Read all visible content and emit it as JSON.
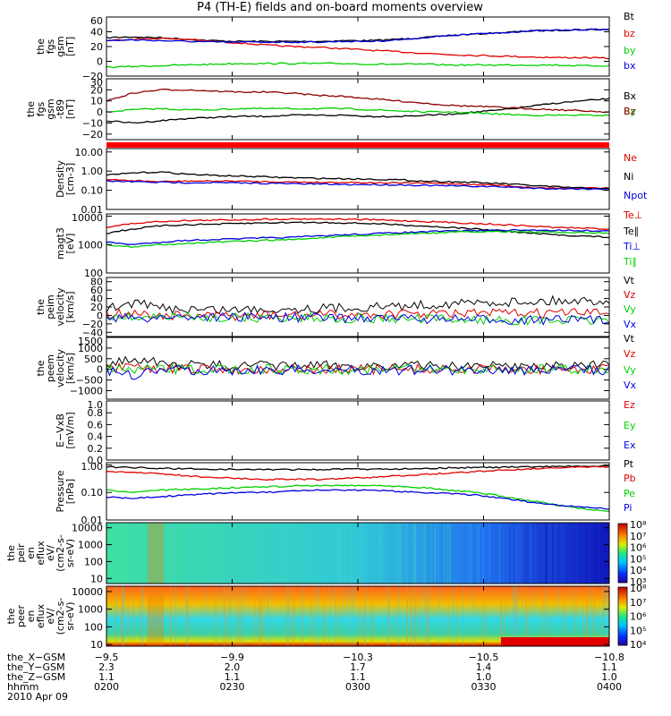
{
  "title": "P4 (TH-E) fields and on-board moments overview",
  "colors": {
    "black": "#000000",
    "red": "#e00000",
    "green": "#00d000",
    "blue": "#0000e0"
  },
  "chart_data": [
    {
      "type": "line",
      "panel": "fgs_gsm",
      "ylabel": [
        "the",
        "fgs",
        "gsm",
        "[nT]"
      ],
      "ylim": [
        -20,
        60
      ],
      "yticks": [
        "60",
        "40",
        "20",
        "0",
        "−20"
      ],
      "series": [
        {
          "name": "Bt",
          "color": "#000000",
          "values": [
            32,
            33,
            32,
            30,
            28,
            27,
            27,
            27,
            27,
            28,
            28,
            30,
            32,
            35,
            37,
            39,
            41,
            42,
            43,
            43
          ]
        },
        {
          "name": "bz",
          "color": "#e00000",
          "values": [
            28,
            30,
            31,
            30,
            27,
            25,
            22,
            20,
            19,
            17,
            15,
            13,
            11,
            9,
            8,
            7,
            6,
            5,
            5,
            4
          ]
        },
        {
          "name": "by",
          "color": "#00d000",
          "values": [
            -8,
            -7,
            -6,
            -5,
            -4,
            -3,
            -3,
            -3,
            -3,
            -3,
            -4,
            -4,
            -4,
            -5,
            -5,
            -5,
            -5,
            -5,
            -6,
            -6
          ]
        },
        {
          "name": "bx",
          "color": "#0000e0",
          "values": [
            28,
            29,
            28,
            27,
            26,
            26,
            26,
            26,
            26,
            27,
            27,
            29,
            32,
            35,
            37,
            39,
            41,
            42,
            43,
            43
          ]
        }
      ]
    },
    {
      "type": "line",
      "panel": "fgs_gsm_t89",
      "ylabel": [
        "the",
        "fgs",
        "gsm",
        "-t89",
        "[nT]"
      ],
      "ylim": [
        -25,
        30
      ],
      "yticks": [
        "30",
        "20",
        "10",
        "0",
        "−10",
        "−20"
      ],
      "series": [
        {
          "name": "Bx",
          "color": "#000000",
          "values": [
            -8,
            -10,
            -8,
            -6,
            -5,
            -4,
            -4,
            -3,
            -3,
            -3,
            -4,
            -4,
            -3,
            -2,
            0,
            2,
            5,
            8,
            10,
            12
          ]
        },
        {
          "name": "By",
          "color": "#00d000",
          "values": [
            0,
            2,
            3,
            2,
            2,
            3,
            3,
            3,
            3,
            3,
            2,
            1,
            0,
            0,
            -1,
            -2,
            -3,
            -3,
            -3,
            -3
          ]
        },
        {
          "name": "Bz",
          "color": "#8b0000",
          "values": [
            10,
            17,
            20,
            20,
            19,
            18,
            18,
            17,
            15,
            14,
            12,
            10,
            8,
            6,
            5,
            4,
            3,
            2,
            1,
            0
          ]
        }
      ]
    },
    {
      "type": "line",
      "panel": "density",
      "log": true,
      "ylabel": [
        "Density",
        "[cm-3]"
      ],
      "ylim": [
        0.01,
        15
      ],
      "yticks": [
        "10.00",
        "1.00",
        "0.10",
        "0.01"
      ],
      "series": [
        {
          "name": "Ne",
          "color": "#e00000",
          "values": [
            0.35,
            0.32,
            0.28,
            0.3,
            0.3,
            0.3,
            0.28,
            0.27,
            0.26,
            0.26,
            0.25,
            0.24,
            0.24,
            0.22,
            0.2,
            0.18,
            0.14,
            0.13,
            0.13,
            0.13
          ]
        },
        {
          "name": "Ni",
          "color": "#000000",
          "values": [
            0.6,
            0.8,
            0.9,
            0.7,
            0.6,
            0.55,
            0.5,
            0.45,
            0.42,
            0.4,
            0.38,
            0.35,
            0.3,
            0.28,
            0.25,
            0.22,
            0.18,
            0.15,
            0.13,
            0.12
          ]
        },
        {
          "name": "Npot",
          "color": "#0000e0",
          "values": [
            0.3,
            0.28,
            0.26,
            0.25,
            0.25,
            0.24,
            0.23,
            0.22,
            0.21,
            0.2,
            0.2,
            0.19,
            0.18,
            0.17,
            0.16,
            0.15,
            0.13,
            0.12,
            0.12,
            0.11
          ]
        }
      ]
    },
    {
      "type": "line",
      "panel": "temperature",
      "log": true,
      "ylabel": [
        "magt3",
        "[eV]"
      ],
      "ylim": [
        100,
        12000
      ],
      "yticks": [
        "10000",
        "1000",
        "100"
      ],
      "series": [
        {
          "name": "Te⊥",
          "color": "#e00000",
          "values": [
            4000,
            5500,
            6500,
            7000,
            7200,
            7500,
            7800,
            8000,
            8000,
            7800,
            7500,
            7000,
            6500,
            6000,
            5500,
            5000,
            4500,
            4000,
            3800,
            3500
          ]
        },
        {
          "name": "Te∥",
          "color": "#000000",
          "values": [
            2500,
            3500,
            4500,
            5000,
            5200,
            5500,
            5800,
            6000,
            6000,
            5800,
            5500,
            5000,
            4500,
            4000,
            3500,
            3000,
            2500,
            2200,
            2000,
            1800
          ]
        },
        {
          "name": "Ti⊥",
          "color": "#0000e0",
          "values": [
            1200,
            1000,
            1200,
            1400,
            1500,
            1600,
            1700,
            1800,
            2000,
            2200,
            2400,
            2600,
            2800,
            3000,
            3100,
            3200,
            3200,
            3200,
            3100,
            3000
          ]
        },
        {
          "name": "Ti∥",
          "color": "#00d000",
          "values": [
            1000,
            800,
            1000,
            1100,
            1200,
            1300,
            1400,
            1500,
            1700,
            1900,
            2100,
            2300,
            2500,
            2700,
            2800,
            2900,
            2800,
            2700,
            2600,
            2500
          ]
        }
      ]
    },
    {
      "type": "line",
      "panel": "peim_velocity",
      "ylabel": [
        "the",
        "peim",
        "velocity",
        "[km/s]"
      ],
      "ylim": [
        -50,
        90
      ],
      "yticks": [
        "80",
        "60",
        "40",
        "20",
        "0",
        "−20",
        "−40"
      ],
      "series": [
        {
          "name": "Vt",
          "color": "#000000",
          "values": [
            15,
            30,
            18,
            15,
            14,
            14,
            15,
            16,
            17,
            18,
            20,
            22,
            25,
            28,
            30,
            32,
            33,
            35,
            35,
            36
          ]
        },
        {
          "name": "Vz",
          "color": "#e00000",
          "values": [
            2,
            5,
            0,
            -2,
            -2,
            -1,
            0,
            0,
            1,
            2,
            2,
            3,
            3,
            4,
            5,
            5,
            5,
            6,
            6,
            6
          ]
        },
        {
          "name": "Vy",
          "color": "#00d000",
          "values": [
            0,
            -5,
            -3,
            -4,
            -5,
            -5,
            -6,
            -6,
            -6,
            -7,
            -7,
            -8,
            -9,
            -10,
            -10,
            -11,
            -12,
            -12,
            -12,
            -12
          ]
        },
        {
          "name": "Vx",
          "color": "#0000e0",
          "values": [
            -3,
            -8,
            -4,
            -3,
            -3,
            -4,
            -4,
            -5,
            -5,
            -6,
            -6,
            -7,
            -8,
            -9,
            -10,
            -10,
            -11,
            -11,
            -11,
            -11
          ]
        }
      ]
    },
    {
      "type": "line",
      "panel": "peem_velocity",
      "ylabel": [
        "the",
        "peem",
        "velocity",
        "[km/s]"
      ],
      "ylim": [
        -1400,
        1500
      ],
      "yticks": [
        "1500",
        "1000",
        "500",
        "0",
        "−500",
        "−1000"
      ],
      "series": [
        {
          "name": "Vt",
          "color": "#000000",
          "values": [
            200,
            600,
            250,
            200,
            180,
            170,
            170,
            170,
            170,
            170,
            170,
            170,
            170,
            170,
            170,
            170,
            170,
            170,
            170,
            200
          ]
        },
        {
          "name": "Vz",
          "color": "#e00000",
          "values": [
            20,
            60,
            10,
            0,
            0,
            0,
            0,
            0,
            0,
            0,
            0,
            0,
            0,
            0,
            0,
            0,
            0,
            0,
            0,
            0
          ]
        },
        {
          "name": "Vy",
          "color": "#00d000",
          "values": [
            0,
            -50,
            0,
            0,
            0,
            0,
            0,
            0,
            0,
            0,
            0,
            0,
            0,
            0,
            0,
            0,
            0,
            0,
            0,
            0
          ]
        },
        {
          "name": "Vx",
          "color": "#0000e0",
          "values": [
            -20,
            -300,
            -40,
            -30,
            -30,
            -30,
            -30,
            -30,
            -30,
            -30,
            -30,
            -30,
            -30,
            -30,
            -30,
            -30,
            -30,
            -30,
            -30,
            -30
          ]
        }
      ]
    },
    {
      "type": "line",
      "panel": "e_vxb",
      "ylabel": [
        "E−VxB",
        "[mV/m]"
      ],
      "ylim": [
        0,
        1
      ],
      "yticks": [
        "1.0",
        "0.8",
        "0.6",
        "0.4",
        "0.2",
        "0.0"
      ],
      "series": [
        {
          "name": "Ez",
          "color": "#e00000",
          "values": []
        },
        {
          "name": "Ey",
          "color": "#00d000",
          "values": []
        },
        {
          "name": "Ex",
          "color": "#0000e0",
          "values": []
        }
      ]
    },
    {
      "type": "line",
      "panel": "pressure",
      "log": true,
      "ylabel": [
        "Pressure",
        "[nPa]"
      ],
      "ylim": [
        0.01,
        1.2
      ],
      "yticks": [
        "1.00",
        "0.10",
        "0.01"
      ],
      "series": [
        {
          "name": "Pt",
          "color": "#000000",
          "values": [
            0.85,
            0.8,
            0.75,
            0.72,
            0.7,
            0.68,
            0.68,
            0.68,
            0.68,
            0.7,
            0.7,
            0.72,
            0.75,
            0.78,
            0.8,
            0.82,
            0.85,
            0.88,
            0.9,
            0.9
          ]
        },
        {
          "name": "Pb",
          "color": "#e00000",
          "values": [
            0.55,
            0.55,
            0.48,
            0.4,
            0.35,
            0.32,
            0.3,
            0.3,
            0.3,
            0.32,
            0.35,
            0.4,
            0.45,
            0.5,
            0.58,
            0.65,
            0.72,
            0.78,
            0.82,
            0.85
          ]
        },
        {
          "name": "Pe",
          "color": "#00d000",
          "values": [
            0.12,
            0.1,
            0.12,
            0.13,
            0.14,
            0.15,
            0.16,
            0.17,
            0.18,
            0.18,
            0.18,
            0.17,
            0.15,
            0.12,
            0.1,
            0.07,
            0.05,
            0.035,
            0.025,
            0.02
          ]
        },
        {
          "name": "Pi",
          "color": "#0000e0",
          "values": [
            0.07,
            0.06,
            0.07,
            0.08,
            0.09,
            0.1,
            0.1,
            0.11,
            0.12,
            0.12,
            0.12,
            0.11,
            0.1,
            0.09,
            0.08,
            0.06,
            0.045,
            0.035,
            0.03,
            0.025
          ]
        }
      ]
    },
    {
      "type": "heatmap",
      "panel": "peir_en_eflux",
      "log": true,
      "ylabel": [
        "the",
        "peir",
        "en",
        "eflux",
        "eV/",
        "(cm2-s-",
        "sr-eV)"
      ],
      "ylim": [
        5,
        20000
      ],
      "yticks": [
        "10000",
        "1000",
        "100",
        "10"
      ],
      "colorbar_ticks": [
        "10⁸",
        "10⁷",
        "10⁶",
        "10⁵",
        "10⁴",
        "10³"
      ],
      "colorbar_range": [
        3,
        8
      ]
    },
    {
      "type": "heatmap",
      "panel": "peer_en_eflux",
      "log": true,
      "ylabel": [
        "the",
        "peer",
        "en",
        "eflux",
        "eV/",
        "(cm2-s-",
        "sr-eV)"
      ],
      "ylim": [
        8,
        20000
      ],
      "yticks": [
        "10000",
        "1000",
        "100",
        "10"
      ],
      "colorbar_ticks": [
        "10⁸",
        "10⁷",
        "10⁶",
        "10⁵",
        "10⁴"
      ],
      "colorbar_range": [
        4,
        8
      ]
    }
  ],
  "xaxis": {
    "tick_count": 5,
    "rows": [
      {
        "label": "the_X−GSM",
        "values": [
          "−9.5",
          "−9.9",
          "−10.3",
          "−10.5",
          "−10.8"
        ]
      },
      {
        "label": "the_Y−GSM",
        "values": [
          "2.3",
          "2.0",
          "1.7",
          "1.4",
          "1.1"
        ]
      },
      {
        "label": "the_Z−GSM",
        "values": [
          "1.1",
          "1.1",
          "1.1",
          "1.0",
          "1.0"
        ]
      },
      {
        "label": "hhmm",
        "values": [
          "0200",
          "0230",
          "0300",
          "0330",
          "0400"
        ]
      }
    ],
    "date": "2010 Apr 09"
  }
}
